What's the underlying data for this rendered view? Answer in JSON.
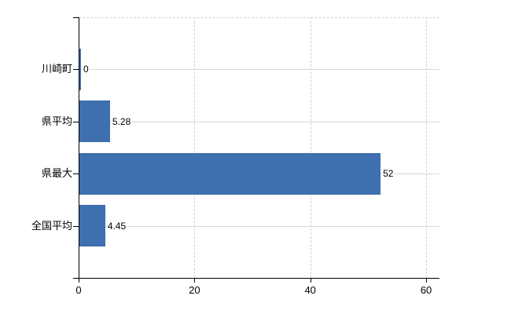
{
  "chart_data": {
    "type": "bar",
    "orientation": "horizontal",
    "title": "",
    "xlabel": "",
    "ylabel": "",
    "categories": [
      "川崎町",
      "県平均",
      "県最大",
      "全国平均"
    ],
    "values": [
      0,
      5.28,
      52,
      4.45
    ],
    "value_labels": [
      "0",
      "5.28",
      "52",
      "4.45"
    ],
    "x_ticks": [
      0,
      20,
      40,
      60
    ],
    "x_tick_labels": [
      "0",
      "20",
      "40",
      "60"
    ],
    "xlim": [
      0,
      62.3
    ],
    "grid": {
      "horizontal_lines": "solid, one per category row",
      "vertical_lines": "dashed, at x ticks 20/40/60",
      "top_border": "dashed"
    },
    "legend": "none",
    "colors": {
      "bar": "#3e6fae",
      "axis": "#000000",
      "h_gridline": "#d7dad3",
      "v_gridline": "#d4d1d4",
      "text": "#000000",
      "background": "#ffffff"
    }
  }
}
